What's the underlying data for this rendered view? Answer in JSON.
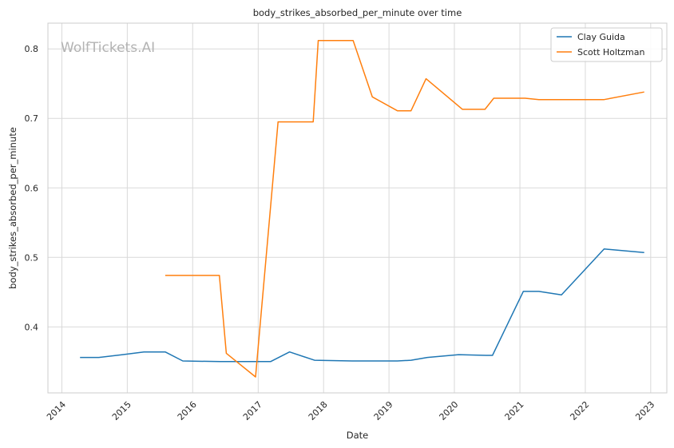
{
  "chart_data": {
    "type": "line",
    "title": "body_strikes_absorbed_per_minute over time",
    "xlabel": "Date",
    "ylabel": "body_strikes_absorbed_per_minute",
    "watermark": "WolfTickets.AI",
    "x_ticks": [
      "2014",
      "2015",
      "2016",
      "2017",
      "2018",
      "2019",
      "2020",
      "2021",
      "2022",
      "2023"
    ],
    "y_ticks": [
      "0.4",
      "0.5",
      "0.6",
      "0.7",
      "0.8"
    ],
    "xlim": [
      "2013-10-15",
      "2023-04-01"
    ],
    "ylim": [
      0.305,
      0.837
    ],
    "grid": true,
    "legend_position": "top-right",
    "series": [
      {
        "name": "Clay Guida",
        "color": "#1f77b4",
        "points": [
          [
            "2014-04-12",
            0.356
          ],
          [
            "2014-07-26",
            0.356
          ],
          [
            "2014-12-06",
            0.36
          ],
          [
            "2015-04-04",
            0.364
          ],
          [
            "2015-08-01",
            0.364
          ],
          [
            "2015-11-07",
            0.351
          ],
          [
            "2016-06-04",
            0.35
          ],
          [
            "2017-03-11",
            0.35
          ],
          [
            "2017-06-25",
            0.364
          ],
          [
            "2017-11-11",
            0.352
          ],
          [
            "2018-06-09",
            0.351
          ],
          [
            "2019-02-17",
            0.351
          ],
          [
            "2019-05-04",
            0.352
          ],
          [
            "2019-08-03",
            0.356
          ],
          [
            "2020-01-25",
            0.36
          ],
          [
            "2020-06-27",
            0.359
          ],
          [
            "2020-08-01",
            0.359
          ],
          [
            "2021-01-20",
            0.451
          ],
          [
            "2021-04-17",
            0.451
          ],
          [
            "2021-08-21",
            0.446
          ],
          [
            "2022-04-16",
            0.512
          ],
          [
            "2022-11-26",
            0.507
          ]
        ]
      },
      {
        "name": "Scott Holtzman",
        "color": "#ff7f0e",
        "points": [
          [
            "2015-08-01",
            0.474
          ],
          [
            "2016-05-29",
            0.474
          ],
          [
            "2016-07-07",
            0.362
          ],
          [
            "2016-12-17",
            0.328
          ],
          [
            "2017-04-22",
            0.695
          ],
          [
            "2017-11-04",
            0.695
          ],
          [
            "2017-12-02",
            0.812
          ],
          [
            "2018-06-15",
            0.812
          ],
          [
            "2018-09-30",
            0.731
          ],
          [
            "2019-02-17",
            0.711
          ],
          [
            "2019-05-04",
            0.711
          ],
          [
            "2019-07-27",
            0.757
          ],
          [
            "2020-02-15",
            0.713
          ],
          [
            "2020-06-20",
            0.713
          ],
          [
            "2020-08-08",
            0.729
          ],
          [
            "2021-01-30",
            0.729
          ],
          [
            "2021-04-17",
            0.727
          ],
          [
            "2022-04-16",
            0.727
          ],
          [
            "2022-11-26",
            0.738
          ]
        ]
      }
    ]
  }
}
